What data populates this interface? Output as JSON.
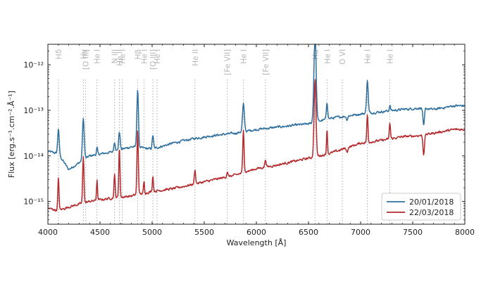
{
  "chart_data": {
    "type": "line",
    "xlabel": "Wavelength [Å]",
    "ylabel": "Flux [erg.s⁻¹.cm⁻².Å⁻¹]",
    "xlim": [
      4000,
      8000
    ],
    "ylim_log10": [
      -15.5,
      -11.55
    ],
    "y_scale": "log",
    "x_ticks": [
      4000,
      4500,
      5000,
      5500,
      6000,
      6500,
      7000,
      7500,
      8000
    ],
    "x_tick_labels": [
      "4000",
      "4500",
      "5000",
      "5500",
      "6000",
      "6500",
      "7000",
      "7500",
      "8000"
    ],
    "y_ticks_log10": [
      -15,
      -14,
      -13,
      -12
    ],
    "y_tick_labels": [
      "10⁻¹⁵",
      "10⁻¹⁴",
      "10⁻¹³",
      "10⁻¹²"
    ],
    "legend_position": "bottom-right",
    "lines_reference": [
      {
        "label": "Hδ",
        "x": 4101
      },
      {
        "label": "Hγ",
        "x": 4340
      },
      {
        "label": "[O III]",
        "x": 4363
      },
      {
        "label": "He I",
        "x": 4471
      },
      {
        "label": "N III",
        "x": 4640
      },
      {
        "label": "He II",
        "x": 4686
      },
      {
        "label": "He I",
        "x": 4713
      },
      {
        "label": "Hβ",
        "x": 4861
      },
      {
        "label": "He I",
        "x": 4922
      },
      {
        "label": "[O III]",
        "x": 5007
      },
      {
        "label": "He I",
        "x": 5047
      },
      {
        "label": "He II",
        "x": 5411
      },
      {
        "label": "[Fe VII]",
        "x": 5721
      },
      {
        "label": "He I",
        "x": 5876
      },
      {
        "label": "[Fe VII]",
        "x": 6087
      },
      {
        "label": "Hα",
        "x": 6563
      },
      {
        "label": "He I",
        "x": 6678
      },
      {
        "label": "O VI",
        "x": 6825
      },
      {
        "label": "He I",
        "x": 7065
      },
      {
        "label": "He I",
        "x": 7281
      }
    ],
    "series": [
      {
        "name": "20/01/2018",
        "color": "#2e6f9e",
        "continuum_log10": [
          [
            4000,
            -13.9
          ],
          [
            4100,
            -13.95
          ],
          [
            4200,
            -14.3
          ],
          [
            4400,
            -14.0
          ],
          [
            4600,
            -13.92
          ],
          [
            4800,
            -13.8
          ],
          [
            5000,
            -13.85
          ],
          [
            5200,
            -13.72
          ],
          [
            5400,
            -13.62
          ],
          [
            5600,
            -13.55
          ],
          [
            5800,
            -13.5
          ],
          [
            6000,
            -13.42
          ],
          [
            6200,
            -13.37
          ],
          [
            6400,
            -13.32
          ],
          [
            6500,
            -13.3
          ],
          [
            6700,
            -13.18
          ],
          [
            7000,
            -13.08
          ],
          [
            7200,
            -13.03
          ],
          [
            7400,
            -12.98
          ],
          [
            7580,
            -12.95
          ],
          [
            7700,
            -12.98
          ],
          [
            7900,
            -12.9
          ],
          [
            8000,
            -12.9
          ]
        ],
        "lines": [
          {
            "x": 4101,
            "peak": 0.55,
            "width": 10
          },
          {
            "x": 4340,
            "peak": 0.9,
            "width": 12
          },
          {
            "x": 4471,
            "peak": 0.15,
            "width": 8
          },
          {
            "x": 4640,
            "peak": 0.2,
            "width": 10
          },
          {
            "x": 4686,
            "peak": 0.4,
            "width": 10
          },
          {
            "x": 4861,
            "peak": 1.25,
            "width": 11
          },
          {
            "x": 5007,
            "peak": 0.3,
            "width": 9
          },
          {
            "x": 5876,
            "peak": 0.6,
            "width": 13
          },
          {
            "x": 6563,
            "peak": 1.95,
            "width": 15
          },
          {
            "x": 6678,
            "peak": 0.38,
            "width": 9
          },
          {
            "x": 7065,
            "peak": 0.72,
            "width": 11
          },
          {
            "x": 7281,
            "peak": 0.12,
            "width": 8
          }
        ],
        "absorptions": [
          {
            "x": 6870,
            "depth": 0.08,
            "width": 10
          },
          {
            "x": 7605,
            "depth": 0.4,
            "width": 10
          }
        ]
      },
      {
        "name": "22/03/2018",
        "color": "#b5282c",
        "continuum_log10": [
          [
            4000,
            -15.15
          ],
          [
            4100,
            -15.2
          ],
          [
            4200,
            -15.12
          ],
          [
            4400,
            -15.0
          ],
          [
            4600,
            -14.93
          ],
          [
            4800,
            -14.88
          ],
          [
            5000,
            -14.78
          ],
          [
            5200,
            -14.72
          ],
          [
            5400,
            -14.62
          ],
          [
            5600,
            -14.52
          ],
          [
            5800,
            -14.42
          ],
          [
            6000,
            -14.28
          ],
          [
            6200,
            -14.2
          ],
          [
            6400,
            -14.1
          ],
          [
            6500,
            -14.05
          ],
          [
            6700,
            -13.95
          ],
          [
            7000,
            -13.72
          ],
          [
            7200,
            -13.66
          ],
          [
            7400,
            -13.58
          ],
          [
            7580,
            -13.55
          ],
          [
            7700,
            -13.5
          ],
          [
            7900,
            -13.42
          ],
          [
            8000,
            -13.42
          ]
        ],
        "lines": [
          {
            "x": 4101,
            "peak": 0.7,
            "width": 8
          },
          {
            "x": 4340,
            "peak": 1.0,
            "width": 9
          },
          {
            "x": 4471,
            "peak": 0.45,
            "width": 7
          },
          {
            "x": 4640,
            "peak": 0.5,
            "width": 8
          },
          {
            "x": 4686,
            "peak": 1.1,
            "width": 8
          },
          {
            "x": 4861,
            "peak": 1.4,
            "width": 9
          },
          {
            "x": 4922,
            "peak": 0.25,
            "width": 7
          },
          {
            "x": 5007,
            "peak": 0.35,
            "width": 7
          },
          {
            "x": 5411,
            "peak": 0.3,
            "width": 9
          },
          {
            "x": 5721,
            "peak": 0.12,
            "width": 8
          },
          {
            "x": 5876,
            "peak": 0.95,
            "width": 9
          },
          {
            "x": 6087,
            "peak": 0.18,
            "width": 8
          },
          {
            "x": 6563,
            "peak": 1.7,
            "width": 13
          },
          {
            "x": 6678,
            "peak": 0.55,
            "width": 7
          },
          {
            "x": 7065,
            "peak": 0.6,
            "width": 8
          },
          {
            "x": 7281,
            "peak": 0.35,
            "width": 8
          }
        ],
        "absorptions": [
          {
            "x": 6870,
            "depth": 0.1,
            "width": 10
          },
          {
            "x": 7605,
            "depth": 0.42,
            "width": 10
          }
        ]
      }
    ]
  }
}
